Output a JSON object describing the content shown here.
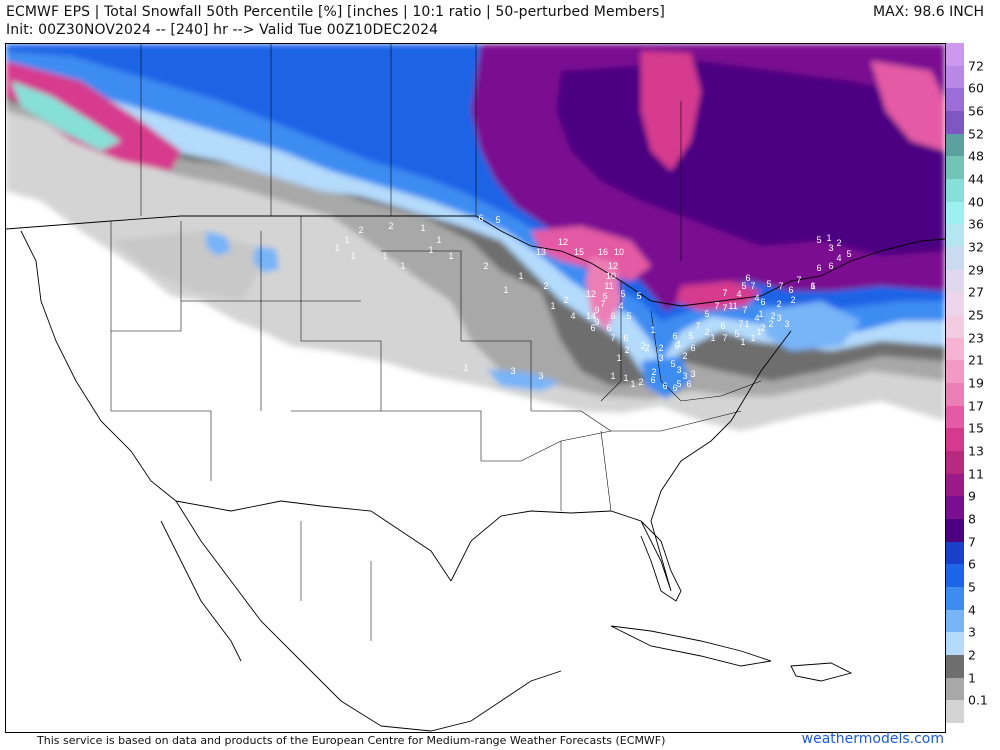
{
  "header": {
    "title_line1": "ECMWF EPS | Total Snowfall 50th Percentile [%] [inches | 10:1 ratio | 50-perturbed Members]",
    "title_line2": "Init: 00Z30NOV2024 -- [240] hr --> Valid Tue 00Z10DEC2024",
    "max_label": "MAX: 98.6 INCH"
  },
  "colorbar": {
    "labels": [
      "72",
      "60",
      "56",
      "52",
      "48",
      "44",
      "40",
      "36",
      "32",
      "29",
      "27",
      "25",
      "23",
      "21",
      "19",
      "17",
      "15",
      "13",
      "11",
      "9",
      "8",
      "7",
      "6",
      "5",
      "4",
      "3",
      "2",
      "1",
      "0.1"
    ],
    "colors": [
      "#cc99ee",
      "#b888e6",
      "#9c6fd8",
      "#7e57c2",
      "#5ca0a0",
      "#72c4b4",
      "#86e0d8",
      "#9cf0f0",
      "#b4e6f0",
      "#ccdaf0",
      "#e0d8ec",
      "#ecd6ec",
      "#f4cce2",
      "#f6b4d2",
      "#f29ac4",
      "#ec7eb6",
      "#e45aa4",
      "#d63a8e",
      "#b82a80",
      "#9c1a88",
      "#7a0e90",
      "#4b0082",
      "#1a3fc8",
      "#1e64e6",
      "#3c8cf2",
      "#78b4f8",
      "#b4dafc",
      "#6e6e6e",
      "#a8a8a8",
      "#d4d4d4"
    ]
  },
  "map": {
    "snow_labels": [
      {
        "v": "6"
      },
      {
        "v": "5"
      },
      {
        "v": "2"
      },
      {
        "v": "1"
      },
      {
        "v": "1"
      },
      {
        "v": "2"
      },
      {
        "v": "1"
      },
      {
        "v": "1"
      },
      {
        "v": "1"
      },
      {
        "v": "1"
      },
      {
        "v": "1"
      },
      {
        "v": "1"
      },
      {
        "v": "1"
      },
      {
        "v": "2"
      },
      {
        "v": "1"
      },
      {
        "v": "1"
      },
      {
        "v": "2"
      },
      {
        "v": "1"
      },
      {
        "v": "2"
      },
      {
        "v": "4"
      },
      {
        "v": "1"
      },
      {
        "v": "3"
      },
      {
        "v": "3"
      },
      {
        "v": "13"
      },
      {
        "v": "12"
      },
      {
        "v": "15"
      },
      {
        "v": "16"
      },
      {
        "v": "10"
      },
      {
        "v": "12"
      },
      {
        "v": "10"
      },
      {
        "v": "11"
      },
      {
        "v": "12"
      },
      {
        "v": "6"
      },
      {
        "v": "5"
      },
      {
        "v": "5"
      },
      {
        "v": "7"
      },
      {
        "v": "14"
      },
      {
        "v": "9"
      },
      {
        "v": "6"
      },
      {
        "v": "5"
      },
      {
        "v": "6"
      },
      {
        "v": "6"
      },
      {
        "v": "4"
      },
      {
        "v": "7"
      },
      {
        "v": "6"
      },
      {
        "v": "2"
      },
      {
        "v": "2"
      },
      {
        "v": "1"
      },
      {
        "v": "1"
      },
      {
        "v": "1"
      },
      {
        "v": "2"
      },
      {
        "v": "1"
      },
      {
        "v": "2"
      },
      {
        "v": "2"
      },
      {
        "v": "2"
      },
      {
        "v": "1"
      },
      {
        "v": "2"
      },
      {
        "v": "1"
      },
      {
        "v": "6"
      },
      {
        "v": "5"
      },
      {
        "v": "6"
      },
      {
        "v": "6"
      },
      {
        "v": "3"
      },
      {
        "v": "5"
      },
      {
        "v": "3"
      },
      {
        "v": "3"
      },
      {
        "v": "6"
      },
      {
        "v": "6"
      },
      {
        "v": "5"
      },
      {
        "v": "6"
      },
      {
        "v": "7"
      },
      {
        "v": "2"
      },
      {
        "v": "7"
      },
      {
        "v": "11"
      },
      {
        "v": "7"
      },
      {
        "v": "4"
      },
      {
        "v": "5"
      },
      {
        "v": "7"
      },
      {
        "v": "6"
      },
      {
        "v": "5"
      },
      {
        "v": "7"
      },
      {
        "v": "6"
      },
      {
        "v": "7"
      },
      {
        "v": "6"
      },
      {
        "v": "6"
      },
      {
        "v": "6"
      },
      {
        "v": "4"
      },
      {
        "v": "5"
      },
      {
        "v": "5"
      },
      {
        "v": "3"
      },
      {
        "v": "2"
      },
      {
        "v": "1"
      },
      {
        "v": "1"
      },
      {
        "v": "2"
      },
      {
        "v": "2"
      },
      {
        "v": "3"
      },
      {
        "v": "3"
      },
      {
        "v": "2"
      },
      {
        "v": "2"
      },
      {
        "v": "4"
      },
      {
        "v": "5"
      },
      {
        "v": "7"
      },
      {
        "v": "6"
      },
      {
        "v": "7"
      },
      {
        "v": "4"
      },
      {
        "v": "7"
      },
      {
        "v": "5"
      },
      {
        "v": "7"
      },
      {
        "v": "6"
      },
      {
        "v": "1"
      },
      {
        "v": "1"
      },
      {
        "v": "1"
      },
      {
        "v": "1"
      },
      {
        "v": "2"
      },
      {
        "v": "1"
      },
      {
        "v": "1"
      },
      {
        "v": "3"
      },
      {
        "v": "6"
      },
      {
        "v": "9"
      }
    ]
  },
  "footer": {
    "credit": "This service is based on data and products of the European Centre for Medium-range Weather Forecasts (ECMWF)",
    "site": "weathermodels.com"
  }
}
